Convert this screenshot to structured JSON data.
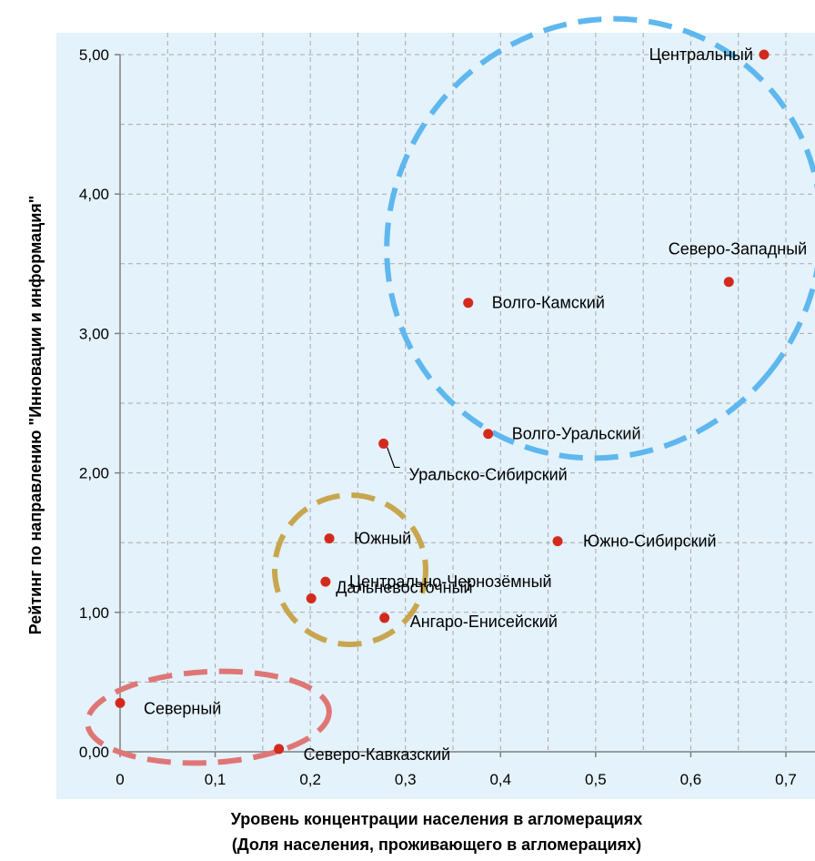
{
  "chart_data": {
    "type": "scatter",
    "title": "",
    "xlabel": "Уровень концентрации населения в агломерациях",
    "xlabel2": "(Доля населения, проживающего в агломерациях)",
    "ylabel": "Рейтинг по направлению \"Инновации и информация\"",
    "xlim": [
      0,
      0.7
    ],
    "ylim": [
      0,
      5
    ],
    "x_ticks": [
      "0",
      "0,1",
      "0,2",
      "0,3",
      "0,4",
      "0,5",
      "0,6",
      "0,7"
    ],
    "y_ticks": [
      "0,00",
      "1,00",
      "2,00",
      "3,00",
      "4,00",
      "5,00"
    ],
    "grid": true,
    "points": [
      {
        "label": "Центральный",
        "x": 0.677,
        "y": 5.0
      },
      {
        "label": "Северо-Западный",
        "x": 0.64,
        "y": 3.37
      },
      {
        "label": "Волго-Камский",
        "x": 0.366,
        "y": 3.22
      },
      {
        "label": "Волго-Уральский",
        "x": 0.387,
        "y": 2.28
      },
      {
        "label": "Уральско-Сибирский",
        "x": 0.277,
        "y": 2.21
      },
      {
        "label": "Южный",
        "x": 0.22,
        "y": 1.53
      },
      {
        "label": "Южно-Сибирский",
        "x": 0.46,
        "y": 1.51
      },
      {
        "label": "Центрально-Чернозёмный",
        "x": 0.216,
        "y": 1.22
      },
      {
        "label": "Дальневосточный",
        "x": 0.201,
        "y": 1.1
      },
      {
        "label": "Ангаро-Енисейский",
        "x": 0.278,
        "y": 0.96
      },
      {
        "label": "Северный",
        "x": 0.0,
        "y": 0.35
      },
      {
        "label": "Северо-Кавказский",
        "x": 0.167,
        "y": 0.02
      }
    ],
    "point_color": "#d42a1e",
    "plot_background": "#e4f2fb",
    "clusters": [
      {
        "color": "#5eb7ee",
        "members": [
          "Центральный",
          "Северо-Западный",
          "Волго-Камский",
          "Волго-Уральский"
        ]
      },
      {
        "color": "#c8a64f",
        "members": [
          "Южный",
          "Центрально-Чернозёмный",
          "Дальневосточный"
        ]
      },
      {
        "color": "#df7676",
        "members": [
          "Северный",
          "Северо-Кавказский"
        ]
      }
    ]
  }
}
